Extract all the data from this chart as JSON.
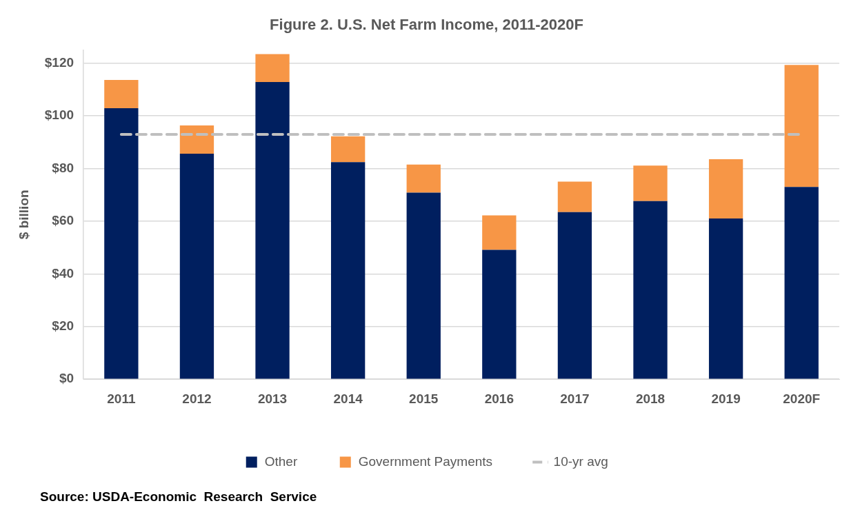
{
  "chart_data": {
    "type": "bar",
    "title": "Figure 2. U.S. Net Farm Income, 2011-2020F",
    "ylabel": "$ billion",
    "categories": [
      "2011",
      "2012",
      "2013",
      "2014",
      "2015",
      "2016",
      "2017",
      "2018",
      "2019",
      "2020F"
    ],
    "stacked": true,
    "series": [
      {
        "name": "Other",
        "color": "#001f5f",
        "values": [
          102.9,
          85.6,
          112.8,
          82.4,
          70.8,
          49.1,
          63.4,
          67.6,
          61.0,
          73.0
        ]
      },
      {
        "name": "Government Payments",
        "color": "#f79646",
        "values": [
          10.7,
          10.7,
          10.6,
          9.8,
          10.7,
          13.1,
          11.6,
          13.5,
          22.5,
          46.3
        ]
      }
    ],
    "ref_lines": [
      {
        "axis": "y",
        "value": 92.9,
        "label": "10-yr avg",
        "color": "#bfbfbf",
        "line_style": "dashed"
      }
    ],
    "ylim": [
      0,
      125
    ],
    "yticks": [
      {
        "value": 0,
        "label": "$0"
      },
      {
        "value": 20,
        "label": "$20"
      },
      {
        "value": 40,
        "label": "$40"
      },
      {
        "value": 60,
        "label": "$60"
      },
      {
        "value": 80,
        "label": "$80"
      },
      {
        "value": 100,
        "label": "$100"
      },
      {
        "value": 120,
        "label": "$120"
      }
    ],
    "grid": "y",
    "legend": "bottom",
    "annotations": [
      "Source: USDA-Economic  Research  Service"
    ]
  }
}
